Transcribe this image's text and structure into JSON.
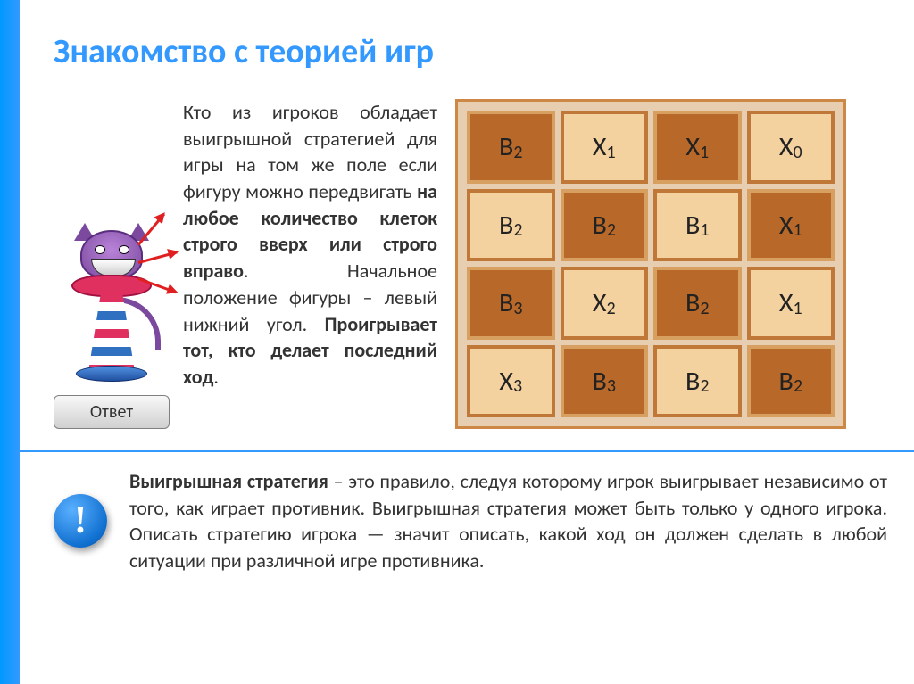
{
  "title": "Знакомство с теорией игр",
  "task": {
    "part1": "Кто из игроков обладает выигрышной стратегией для игры на том же поле если фигуру можно передвигать ",
    "bold1": "на любое количество кле­ток строго вверх или строго вправо",
    "part2": ". Началь­ное положение фигуры – левый нижний угол. ",
    "bold2": "Проигрывает тот, кто делает последний ход",
    "part3": "."
  },
  "answer_button": "Ответ",
  "grid": {
    "rows": [
      [
        {
          "label": "В",
          "sub": "2",
          "style": "dark"
        },
        {
          "label": "Х",
          "sub": "1",
          "style": "light"
        },
        {
          "label": "Х",
          "sub": "1",
          "style": "dark"
        },
        {
          "label": "Х",
          "sub": "0",
          "style": "light"
        }
      ],
      [
        {
          "label": "В",
          "sub": "2",
          "style": "light"
        },
        {
          "label": "В",
          "sub": "2",
          "style": "dark"
        },
        {
          "label": "В",
          "sub": "1",
          "style": "light"
        },
        {
          "label": "Х",
          "sub": "1",
          "style": "dark"
        }
      ],
      [
        {
          "label": "В",
          "sub": "3",
          "style": "dark"
        },
        {
          "label": "Х",
          "sub": "2",
          "style": "light"
        },
        {
          "label": "В",
          "sub": "2",
          "style": "dark"
        },
        {
          "label": "Х",
          "sub": "1",
          "style": "light"
        }
      ],
      [
        {
          "label": "Х",
          "sub": "3",
          "style": "light"
        },
        {
          "label": "В",
          "sub": "3",
          "style": "dark"
        },
        {
          "label": "В",
          "sub": "2",
          "style": "light"
        },
        {
          "label": "В",
          "sub": "2",
          "style": "dark"
        }
      ]
    ],
    "colors": {
      "bg": "#e8ceb0",
      "outer_border": "#cc8844",
      "dark_fill": "#b86828",
      "dark_border": "#d8a060",
      "light_fill": "#f4d2a0",
      "light_border": "#c07838"
    }
  },
  "info": {
    "badge": "!",
    "bold1": "Выигрышная стратегия",
    "text": " – это правило, следуя которому игрок выигрывает независимо от того, как играет противник. Выигрышная стратегия может быть только у одного игрока. Описать стратегию игрока — значит описать, какой ход он должен сделать в любой ситуации при различной игре противника."
  },
  "colors": {
    "accent": "#3399ff",
    "left_bar": "#0099ff"
  }
}
